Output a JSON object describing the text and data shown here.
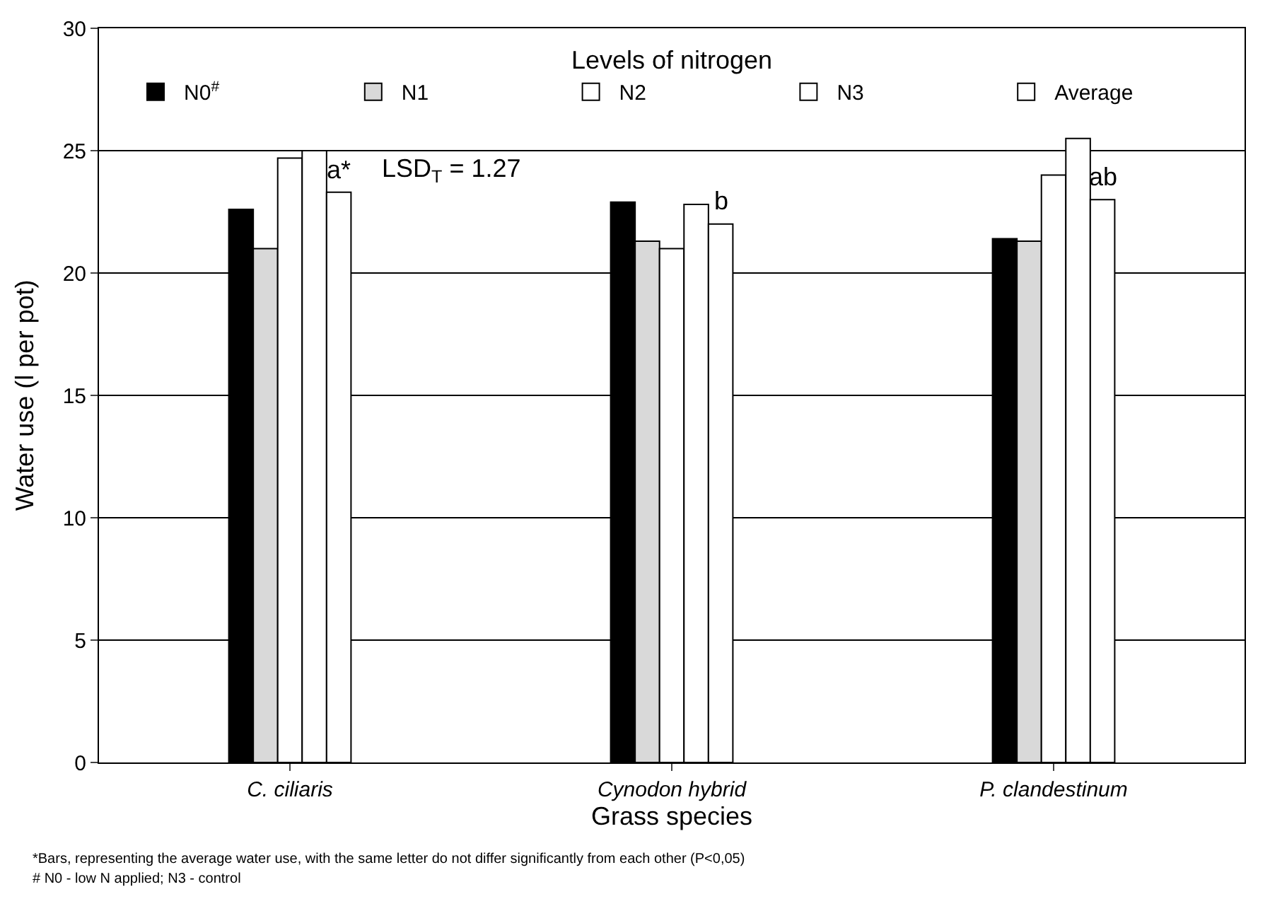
{
  "chart_data": {
    "type": "bar",
    "xlabel": "Grass species",
    "ylabel": "Water use (l per pot)",
    "legend_title": "Levels of nitrogen",
    "categories": [
      "C. ciliaris",
      "Cynodon hybrid",
      "P. clandestinum"
    ],
    "series": [
      {
        "name": "N0$^{#}$",
        "color": "#000000",
        "values": [
          22.6,
          22.9,
          21.4
        ]
      },
      {
        "name": "N1",
        "color": "#d9d9d9",
        "values": [
          21.0,
          21.3,
          21.3
        ]
      },
      {
        "name": "N2",
        "color": "#ffffff",
        "values": [
          24.7,
          21.0,
          24.0
        ]
      },
      {
        "name": "N3",
        "color": "#ffffff",
        "values": [
          25.0,
          22.8,
          25.5
        ]
      },
      {
        "name": "Average",
        "color": "#ffffff",
        "values": [
          23.3,
          22.0,
          23.0
        ]
      }
    ],
    "ylim": [
      0,
      30
    ],
    "yticks": [
      0,
      5,
      10,
      15,
      20,
      25,
      30
    ],
    "grid": "y",
    "legend": "top",
    "annotations": [
      "a*",
      "b",
      "ab",
      "LSD$_{T}$ = 1.27",
      "*Bars, representing the average water use, with the same letter do not differ significantly from each other (P<0,05)",
      "# N0 - low N applied; N3 - control"
    ]
  }
}
